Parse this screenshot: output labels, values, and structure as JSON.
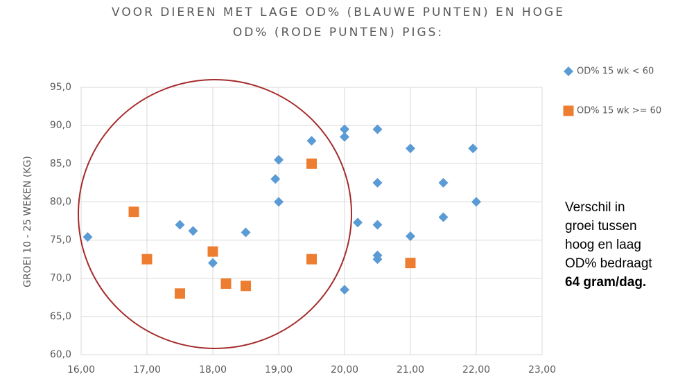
{
  "chart_data": {
    "type": "scatter",
    "title": [
      "VOOR DIEREN MET LAGE OD% (BLAUWE PUNTEN) EN  HOGE",
      "OD% (RODE PUNTEN) PIGS:"
    ],
    "y_label": "GROEI 10 - 25 WEKEN (KG)",
    "annotation": [
      "Verschil in",
      "groei tussen",
      "hoog en laag",
      "OD% bedraagt",
      "64 gram/dag."
    ],
    "xlim": [
      16,
      23
    ],
    "ylim": [
      60,
      95
    ],
    "xticks": [
      {
        "value": 16,
        "label": "16,00"
      },
      {
        "value": 17,
        "label": "17,00"
      },
      {
        "value": 18,
        "label": "18,00"
      },
      {
        "value": 19,
        "label": "19,00"
      },
      {
        "value": 20,
        "label": "20,00"
      },
      {
        "value": 21,
        "label": "21,00"
      },
      {
        "value": 22,
        "label": "22,00"
      },
      {
        "value": 23,
        "label": "23,00"
      }
    ],
    "yticks": [
      {
        "value": 60,
        "label": "60,0"
      },
      {
        "value": 65,
        "label": "65,0"
      },
      {
        "value": 70,
        "label": "70,0"
      },
      {
        "value": 75,
        "label": "75,0"
      },
      {
        "value": 80,
        "label": "80,0"
      },
      {
        "value": 85,
        "label": "85,0"
      },
      {
        "value": 90,
        "label": "90,0"
      },
      {
        "value": 95,
        "label": "95,0"
      }
    ],
    "grid": true,
    "series": [
      {
        "name": "OD% 15 wk < 60",
        "color": "#5b9bd5",
        "marker": "diamond",
        "x": [
          16.1,
          17.5,
          17.7,
          18.0,
          18.5,
          18.95,
          19.0,
          19.0,
          19.5,
          20.0,
          20.0,
          20.0,
          20.2,
          20.5,
          20.5,
          20.5,
          20.5,
          20.5,
          21.0,
          21.0,
          21.5,
          21.5,
          21.95,
          22.0
        ],
        "values": [
          75.4,
          77.0,
          76.2,
          72.0,
          76.0,
          83.0,
          85.5,
          80.0,
          88.0,
          89.5,
          88.5,
          68.5,
          77.3,
          89.5,
          82.5,
          77.0,
          73.0,
          72.5,
          87.0,
          75.5,
          82.5,
          78.0,
          87.0,
          80.0
        ]
      },
      {
        "name": "OD% 15 wk >= 60",
        "color": "#ed7d31",
        "marker": "square",
        "x": [
          16.8,
          17.0,
          17.5,
          18.0,
          18.2,
          18.5,
          19.5,
          19.5,
          21.0
        ],
        "values": [
          78.7,
          72.5,
          68.0,
          73.5,
          69.3,
          69.0,
          85.0,
          72.5,
          72.0
        ]
      }
    ]
  }
}
